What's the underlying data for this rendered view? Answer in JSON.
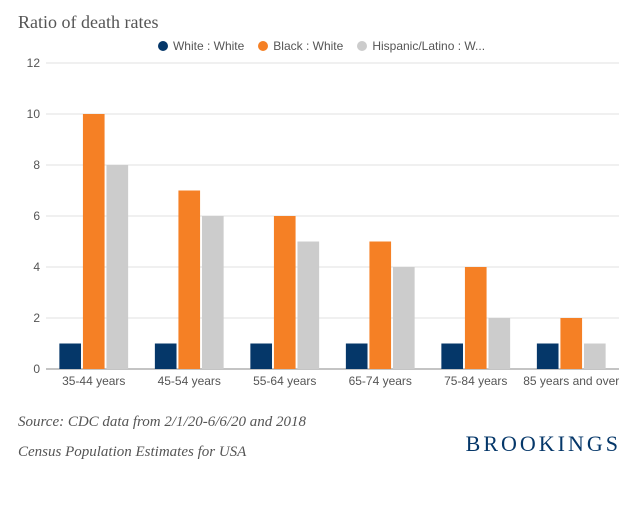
{
  "title": "Ratio of death rates",
  "legend": [
    {
      "key": "s1",
      "label": "White : White",
      "color": "#053769"
    },
    {
      "key": "s2",
      "label": "Black : White",
      "color": "#f58025"
    },
    {
      "key": "s3",
      "label": "Hispanic/Latino : W...",
      "color": "#cccccc"
    }
  ],
  "chart": {
    "type": "bar",
    "categories": [
      "35-44 years",
      "45-54 years",
      "55-64 years",
      "65-74 years",
      "75-84 years",
      "85 years and over"
    ],
    "series": {
      "s1": [
        1,
        1,
        1,
        1,
        1,
        1
      ],
      "s2": [
        10,
        7,
        6,
        5,
        4,
        2
      ],
      "s3": [
        8,
        6,
        5,
        4,
        2,
        1
      ]
    },
    "ylim": [
      0,
      12
    ],
    "ytick_step": 2,
    "background_color": "#ffffff",
    "grid_color": "#e0e0e0",
    "baseline_color": "#888888",
    "axis_font_size": 12,
    "axis_color": "#555555",
    "bar_group_gap": 0.28,
    "bar_inner_gap": 0.02
  },
  "source_lines": [
    "Source: CDC data from 2/1/20-6/6/20 and 2018",
    "Census Population Estimates for USA"
  ],
  "brand": "BROOKINGS"
}
